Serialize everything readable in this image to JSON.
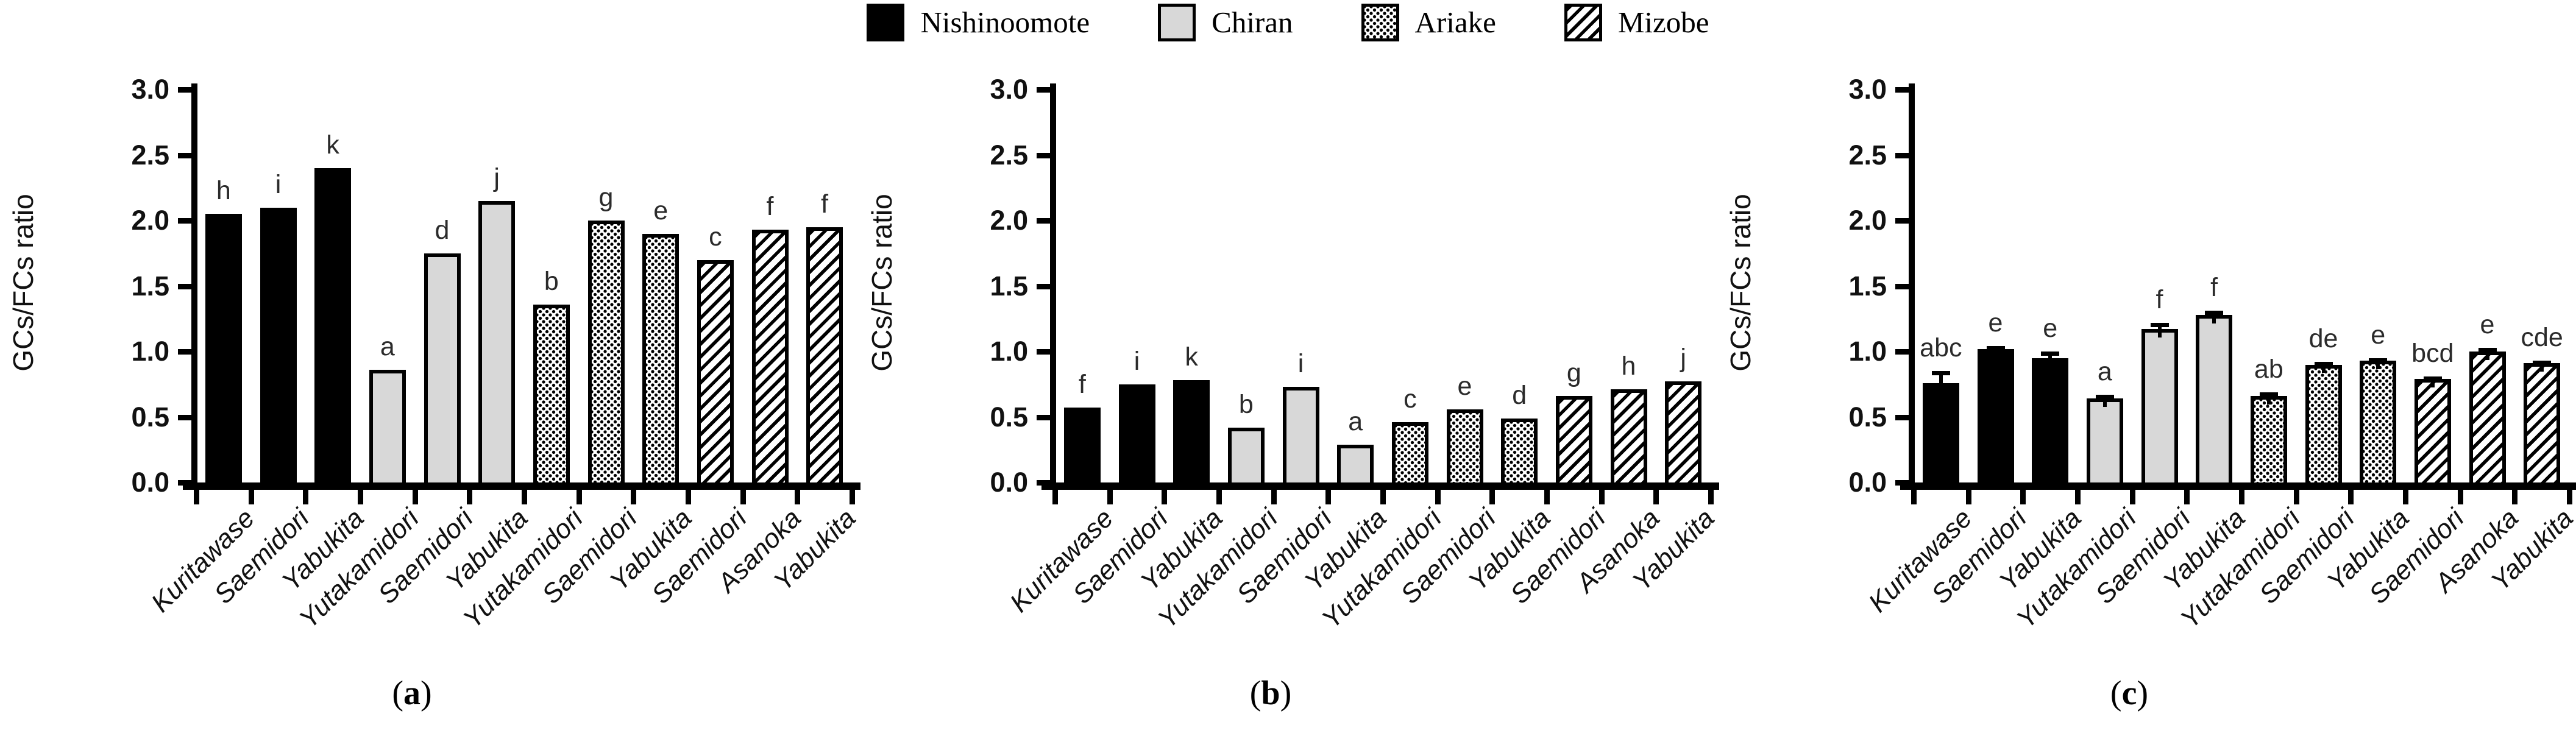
{
  "figure": {
    "legend": [
      {
        "label": "Nishinoomote",
        "pattern": "black",
        "color": "#000000"
      },
      {
        "label": "Chiran",
        "pattern": "gray",
        "color": "#d8d8d8"
      },
      {
        "label": "Ariake",
        "pattern": "dots",
        "color": "#000000"
      },
      {
        "label": "Mizobe",
        "pattern": "hatch",
        "color": "#000000"
      }
    ],
    "y_axis": {
      "label": "GCs/FCs ratio",
      "min": 0.0,
      "max": 3.0,
      "step": 0.5,
      "ticks": [
        "0.0",
        "0.5",
        "1.0",
        "1.5",
        "2.0",
        "2.5",
        "3.0"
      ]
    },
    "panels": [
      {
        "caption_open": "(",
        "caption_letter": "a",
        "caption_close": ")"
      },
      {
        "caption_open": "(",
        "caption_letter": "b",
        "caption_close": ")"
      },
      {
        "caption_open": "(",
        "caption_letter": "c",
        "caption_close": ")"
      }
    ]
  },
  "chart_data": [
    {
      "type": "bar",
      "panel": "(a)",
      "ylabel": "GCs/FCs ratio",
      "ylim": [
        0.0,
        3.0
      ],
      "grid": false,
      "legend_position": "top-center-shared",
      "categories": [
        "Kuritawase",
        "Saemidori",
        "Yabukita",
        "Yutakamidori",
        "Saemidori",
        "Yabukita",
        "Yutakamidori",
        "Saemidori",
        "Yabukita",
        "Saemidori",
        "Asanoka",
        "Yabukita"
      ],
      "groups": [
        {
          "location": "Nishinoomote",
          "pattern": "black",
          "bar_indices": [
            0,
            1,
            2
          ]
        },
        {
          "location": "Chiran",
          "pattern": "gray",
          "bar_indices": [
            3,
            4,
            5
          ]
        },
        {
          "location": "Ariake",
          "pattern": "dots",
          "bar_indices": [
            6,
            7,
            8
          ]
        },
        {
          "location": "Mizobe",
          "pattern": "hatch",
          "bar_indices": [
            9,
            10,
            11
          ]
        }
      ],
      "patterns_by_bar": [
        "black",
        "black",
        "black",
        "gray",
        "gray",
        "gray",
        "dots",
        "dots",
        "dots",
        "hatch",
        "hatch",
        "hatch"
      ],
      "values": [
        2.05,
        2.1,
        2.4,
        0.86,
        1.75,
        2.15,
        1.36,
        2.0,
        1.9,
        1.7,
        1.93,
        1.95
      ],
      "sig_letters": [
        "h",
        "i",
        "k",
        "a",
        "d",
        "j",
        "b",
        "g",
        "e",
        "c",
        "f",
        "f"
      ],
      "errors": []
    },
    {
      "type": "bar",
      "panel": "(b)",
      "ylabel": "GCs/FCs ratio",
      "ylim": [
        0.0,
        3.0
      ],
      "grid": false,
      "legend_position": "top-center-shared",
      "categories": [
        "Kuritawase",
        "Saemidori",
        "Yabukita",
        "Yutakamidori",
        "Saemidori",
        "Yabukita",
        "Yutakamidori",
        "Saemidori",
        "Yabukita",
        "Saemidori",
        "Asanoka",
        "Yabukita"
      ],
      "groups": [
        {
          "location": "Nishinoomote",
          "pattern": "black",
          "bar_indices": [
            0,
            1,
            2
          ]
        },
        {
          "location": "Chiran",
          "pattern": "gray",
          "bar_indices": [
            3,
            4,
            5
          ]
        },
        {
          "location": "Ariake",
          "pattern": "dots",
          "bar_indices": [
            6,
            7,
            8
          ]
        },
        {
          "location": "Mizobe",
          "pattern": "hatch",
          "bar_indices": [
            9,
            10,
            11
          ]
        }
      ],
      "patterns_by_bar": [
        "black",
        "black",
        "black",
        "gray",
        "gray",
        "gray",
        "dots",
        "dots",
        "dots",
        "hatch",
        "hatch",
        "hatch"
      ],
      "values": [
        0.57,
        0.75,
        0.78,
        0.42,
        0.73,
        0.29,
        0.46,
        0.56,
        0.49,
        0.66,
        0.71,
        0.77
      ],
      "sig_letters": [
        "f",
        "i",
        "k",
        "b",
        "i",
        "a",
        "c",
        "e",
        "d",
        "g",
        "h",
        "j"
      ],
      "errors": []
    },
    {
      "type": "bar",
      "panel": "(c)",
      "ylabel": "GCs/FCs ratio",
      "ylim": [
        0.0,
        3.0
      ],
      "grid": false,
      "legend_position": "top-center-shared",
      "categories": [
        "Kuritawase",
        "Saemidori",
        "Yabukita",
        "Yutakamidori",
        "Saemidori",
        "Yabukita",
        "Yutakamidori",
        "Saemidori",
        "Yabukita",
        "Saemidori",
        "Asanoka",
        "Yabukita"
      ],
      "groups": [
        {
          "location": "Nishinoomote",
          "pattern": "black",
          "bar_indices": [
            0,
            1,
            2
          ]
        },
        {
          "location": "Chiran",
          "pattern": "gray",
          "bar_indices": [
            3,
            4,
            5
          ]
        },
        {
          "location": "Ariake",
          "pattern": "dots",
          "bar_indices": [
            6,
            7,
            8
          ]
        },
        {
          "location": "Mizobe",
          "pattern": "hatch",
          "bar_indices": [
            9,
            10,
            11
          ]
        }
      ],
      "patterns_by_bar": [
        "black",
        "black",
        "black",
        "gray",
        "gray",
        "gray",
        "dots",
        "dots",
        "dots",
        "hatch",
        "hatch",
        "hatch"
      ],
      "values": [
        0.76,
        1.02,
        0.95,
        0.64,
        1.17,
        1.28,
        0.66,
        0.9,
        0.93,
        0.79,
        1.0,
        0.91
      ],
      "sig_letters": [
        "abc",
        "e",
        "e",
        "a",
        "f",
        "f",
        "ab",
        "de",
        "e",
        "bcd",
        "e",
        "cde"
      ],
      "errors": [
        0.09,
        0.02,
        0.05,
        0.03,
        0.05,
        0.03,
        0.03,
        0.02,
        0.02,
        0.02,
        0.03,
        0.02
      ]
    }
  ]
}
